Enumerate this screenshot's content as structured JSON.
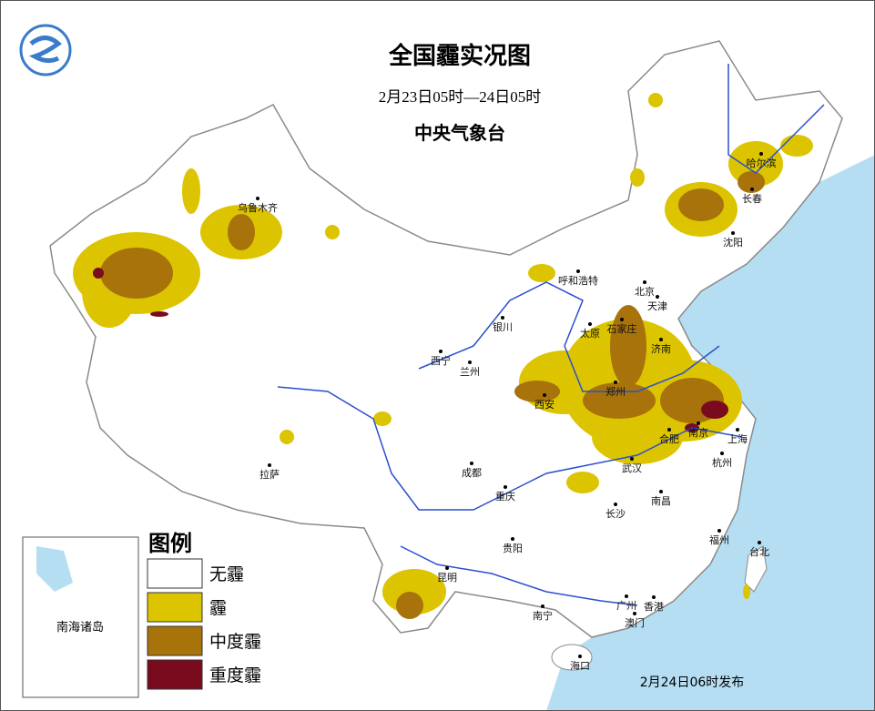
{
  "header": {
    "title": "全国霾实况图",
    "period": "2月23日05时—24日05时",
    "issuer": "中央气象台"
  },
  "legend": {
    "title": "图例",
    "items": [
      {
        "label": "无霾",
        "color": "#ffffff"
      },
      {
        "label": "霾",
        "color": "#dcc400"
      },
      {
        "label": "中度霾",
        "color": "#a8730a"
      },
      {
        "label": "重度霾",
        "color": "#7a0a1e"
      }
    ]
  },
  "inset": {
    "label": "南海诸岛"
  },
  "footer": {
    "issued": "2月24日06时发布"
  },
  "cities": [
    "乌鲁木齐",
    "哈尔滨",
    "长春",
    "沈阳",
    "呼和浩特",
    "北京",
    "天津",
    "石家庄",
    "太原",
    "银川",
    "西宁",
    "兰州",
    "济南",
    "郑州",
    "西安",
    "合肥",
    "南京",
    "上海",
    "武汉",
    "杭州",
    "拉萨",
    "成都",
    "重庆",
    "南昌",
    "长沙",
    "福州",
    "贵阳",
    "昆明",
    "台北",
    "南宁",
    "广州",
    "香港",
    "澳门",
    "海口"
  ]
}
